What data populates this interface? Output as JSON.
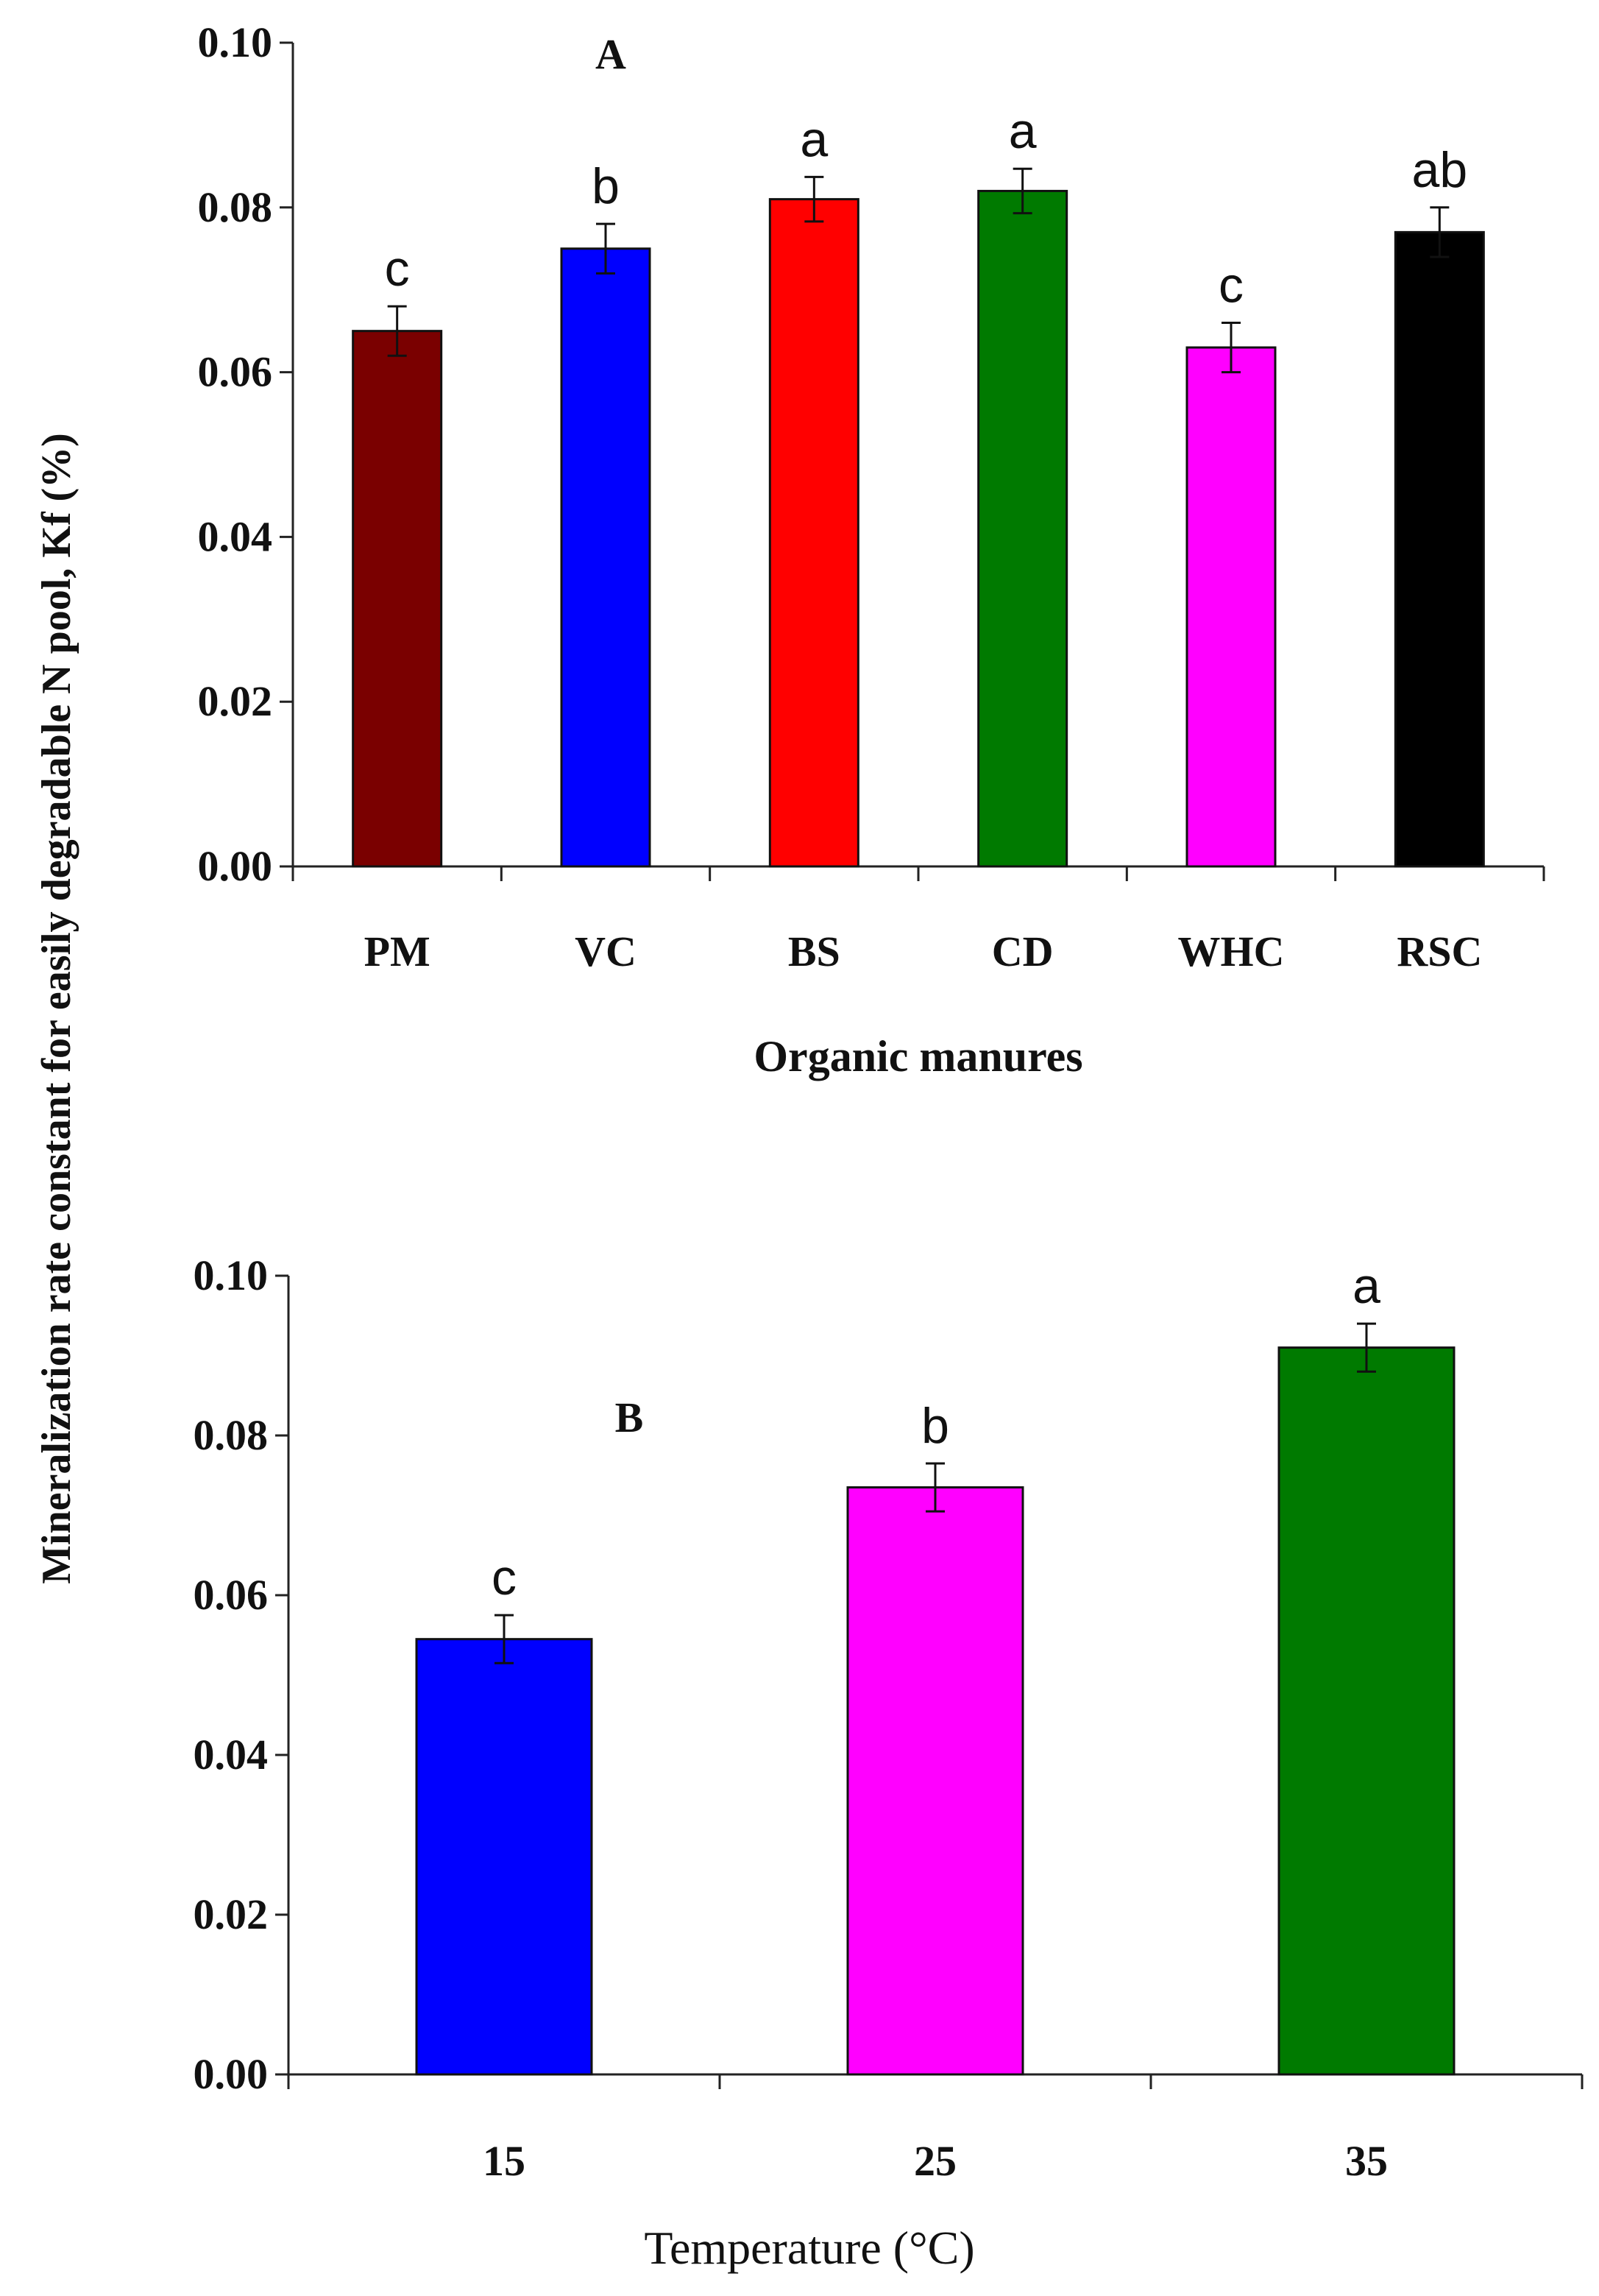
{
  "figure": {
    "shared_ylabel": "Mineralization rate constant for easily  degradable N pool, Kf  (%)"
  },
  "chart_data": [
    {
      "type": "bar",
      "panel": "A",
      "xlabel": "Organic manures",
      "ylabel": "Mineralization rate constant for easily  degradable N pool, Kf  (%)",
      "ylim": [
        0,
        0.1
      ],
      "yticks": [
        "0.00",
        "0.02",
        "0.04",
        "0.06",
        "0.08",
        "0.10"
      ],
      "categories": [
        "PM",
        "VC",
        "BS",
        "CD",
        "WHC",
        "RSC"
      ],
      "values": [
        0.065,
        0.075,
        0.081,
        0.082,
        0.063,
        0.077
      ],
      "errors": [
        0.003,
        0.003,
        0.0027,
        0.0027,
        0.003,
        0.003
      ],
      "significance": [
        "c",
        "b",
        "a",
        "a",
        "c",
        "ab"
      ],
      "colors": [
        "#7a0000",
        "#0000ff",
        "#ff0000",
        "#007a00",
        "#ff00ff",
        "#000000"
      ]
    },
    {
      "type": "bar",
      "panel": "B",
      "xlabel": "Temperature (°C)",
      "ylabel": "Mineralization rate constant for easily  degradable N pool, Kf  (%)",
      "ylim": [
        0,
        0.1
      ],
      "yticks": [
        "0.00",
        "0.02",
        "0.04",
        "0.06",
        "0.08",
        "0.10"
      ],
      "categories": [
        "15",
        "25",
        "35"
      ],
      "values": [
        0.0545,
        0.0735,
        0.091
      ],
      "errors": [
        0.003,
        0.003,
        0.003
      ],
      "significance": [
        "c",
        "b",
        "a"
      ],
      "colors": [
        "#0000ff",
        "#ff00ff",
        "#007a00"
      ]
    }
  ]
}
